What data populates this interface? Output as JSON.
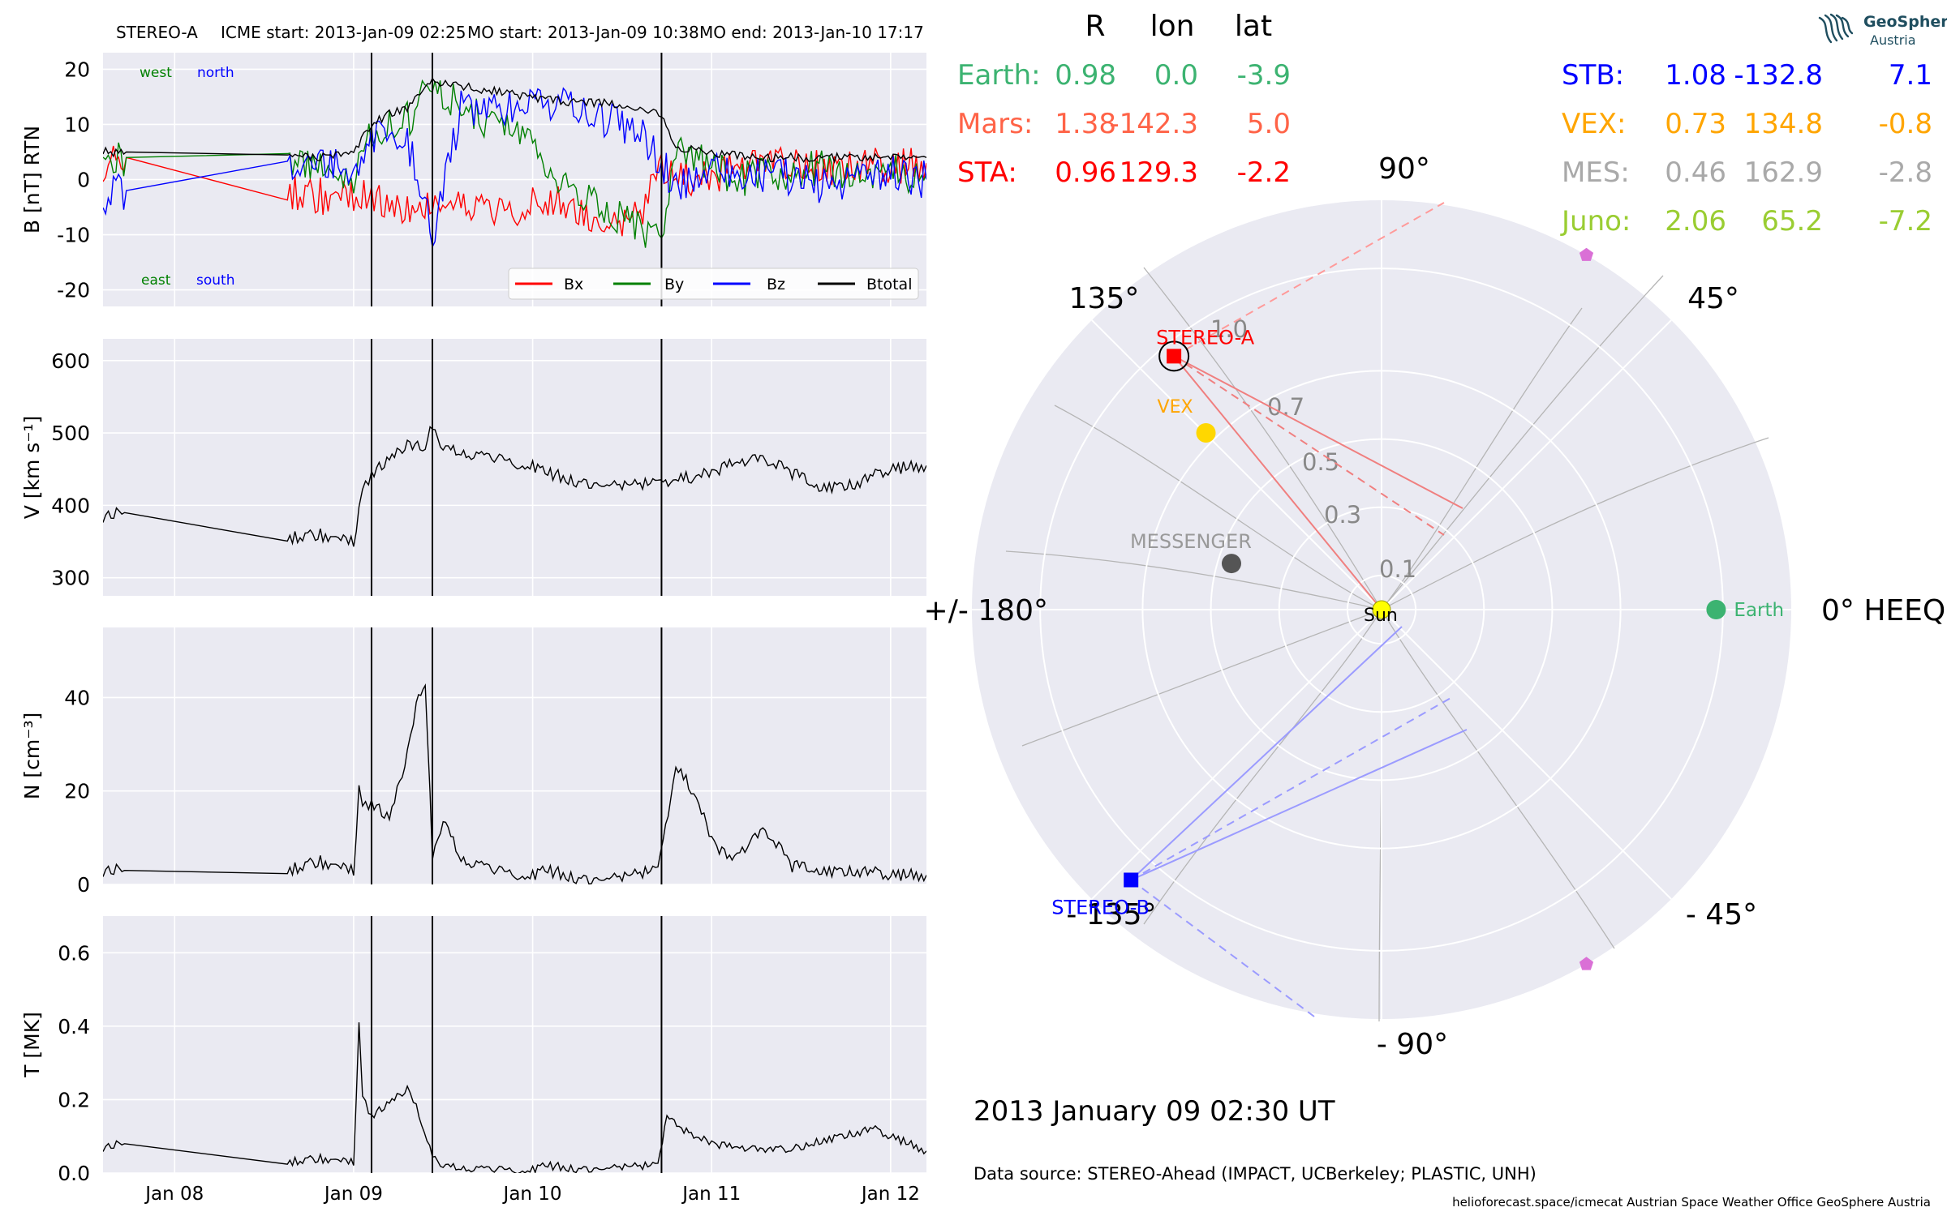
{
  "header": {
    "spacecraft": "STEREO-A",
    "icme_start": "ICME start: 2013-Jan-09 02:25",
    "mo_start": "MO start: 2013-Jan-09 10:38",
    "mo_end": "MO end: 2013-Jan-10 17:17"
  },
  "logo": {
    "line1": "GeoSphere",
    "line2": "Austria"
  },
  "timestamp": "2013 January 09  02:30 UT",
  "data_source": "Data source: STEREO-Ahead (IMPACT, UCBerkeley; PLASTIC, UNH)",
  "footer": "helioforecast.space/icmecat   Austrian Space Weather Office   GeoSphere Austria",
  "table": {
    "headers": [
      "R",
      "lon",
      "lat"
    ],
    "left_rows": [
      {
        "name": "Earth:",
        "r": "0.98",
        "lon": "0.0",
        "lat": "-3.9",
        "color": "#3cb371"
      },
      {
        "name": "Mars:",
        "r": "1.38",
        "lon": "-142.3",
        "lat": "5.0",
        "color": "#ff6347"
      },
      {
        "name": "STA:",
        "r": "0.96",
        "lon": "129.3",
        "lat": "-2.2",
        "color": "#ff0000"
      }
    ],
    "right_rows": [
      {
        "name": "STB:",
        "r": "1.08",
        "lon": "-132.8",
        "lat": "7.1",
        "color": "#0000ff"
      },
      {
        "name": "VEX:",
        "r": "0.73",
        "lon": "134.8",
        "lat": "-0.8",
        "color": "#ffa500"
      },
      {
        "name": "MES:",
        "r": "0.46",
        "lon": "162.9",
        "lat": "-2.8",
        "color": "#a9a9a9"
      },
      {
        "name": "Juno:",
        "r": "2.06",
        "lon": "65.2",
        "lat": "-7.2",
        "color": "#9acd32"
      }
    ]
  },
  "chart_data": [
    {
      "type": "line",
      "panel": "magnetic-field",
      "ylabel": "B [nT] RTN",
      "ylim": [
        -23,
        23
      ],
      "yticks": [
        20,
        10,
        0,
        -10,
        -20
      ],
      "xlim": [
        7.6,
        12.2
      ],
      "x_unit": "days (January 2013)",
      "annotations": [
        {
          "text": "west",
          "color": "#008000"
        },
        {
          "text": "north",
          "color": "#0000ff"
        },
        {
          "text": "east",
          "color": "#008000"
        },
        {
          "text": "south",
          "color": "#0000ff"
        }
      ],
      "legend": "bottom-right",
      "series": [
        {
          "name": "Bx",
          "color": "#ff0000",
          "x": [
            7.6,
            7.73,
            8.63,
            8.8,
            9.0,
            9.1,
            9.2,
            9.3,
            9.44,
            9.6,
            9.8,
            10.0,
            10.2,
            10.4,
            10.6,
            10.72,
            10.8,
            11.0,
            11.2,
            11.4,
            11.6,
            11.8,
            12.0,
            12.2
          ],
          "y": [
            3,
            4,
            -2,
            -3,
            -3,
            -4,
            -3,
            -5,
            -4,
            -5,
            -6,
            -4,
            -5,
            -8,
            -6,
            2,
            0,
            1,
            2,
            3,
            2,
            3,
            2,
            3
          ]
        },
        {
          "name": "By",
          "color": "#008000",
          "x": [
            7.6,
            7.73,
            8.63,
            8.8,
            9.0,
            9.1,
            9.2,
            9.3,
            9.44,
            9.6,
            9.8,
            10.0,
            10.2,
            10.4,
            10.6,
            10.72,
            10.8,
            11.0,
            11.2,
            11.4,
            11.6,
            11.8,
            12.0,
            12.2
          ],
          "y": [
            5,
            4,
            3,
            2,
            1,
            8,
            10,
            11,
            17,
            13,
            10,
            6,
            -2,
            -5,
            -9,
            -12,
            5,
            2,
            0,
            1,
            2,
            0,
            1,
            1
          ]
        },
        {
          "name": "Bz",
          "color": "#0000ff",
          "x": [
            7.6,
            7.73,
            8.63,
            8.8,
            9.0,
            9.1,
            9.2,
            9.3,
            9.44,
            9.6,
            9.8,
            10.0,
            10.2,
            10.4,
            10.6,
            10.72,
            10.8,
            11.0,
            11.2,
            11.4,
            11.6,
            11.8,
            12.0,
            12.2
          ],
          "y": [
            -3,
            -2,
            2,
            3,
            2,
            8,
            9,
            7,
            -10,
            13,
            12,
            14,
            13,
            11,
            9,
            3,
            -1,
            2,
            0,
            1,
            -1,
            0,
            1,
            0
          ]
        },
        {
          "name": "Btotal",
          "color": "#000000",
          "x": [
            7.6,
            7.73,
            8.63,
            8.8,
            9.0,
            9.1,
            9.2,
            9.3,
            9.44,
            9.6,
            9.8,
            10.0,
            10.2,
            10.4,
            10.6,
            10.72,
            10.8,
            11.0,
            11.2,
            11.4,
            11.6,
            11.8,
            12.0,
            12.2
          ],
          "y": [
            5,
            5,
            4,
            4,
            5,
            10,
            12,
            13,
            18,
            17,
            16,
            15,
            14,
            14,
            13,
            12,
            6,
            5,
            4,
            4,
            4,
            4,
            4,
            4
          ]
        }
      ]
    },
    {
      "type": "line",
      "panel": "speed",
      "ylabel": "V [km s⁻¹]",
      "ylim": [
        275,
        630
      ],
      "yticks": [
        600,
        500,
        400,
        300
      ],
      "series": [
        {
          "name": "",
          "color": "#000000",
          "x": [
            7.6,
            7.72,
            8.63,
            8.8,
            9.0,
            9.03,
            9.05,
            9.1,
            9.2,
            9.3,
            9.4,
            9.44,
            9.5,
            9.6,
            9.8,
            10.0,
            10.07,
            10.3,
            10.5,
            10.7,
            10.9,
            11.1,
            11.3,
            11.45,
            11.6,
            11.8,
            12.0,
            12.2
          ],
          "y": [
            385,
            390,
            355,
            360,
            350,
            390,
            430,
            440,
            470,
            485,
            480,
            510,
            480,
            470,
            465,
            455,
            445,
            430,
            430,
            430,
            440,
            455,
            465,
            445,
            425,
            430,
            450,
            455
          ]
        }
      ]
    },
    {
      "type": "line",
      "panel": "density",
      "ylabel": "N [cm⁻³]",
      "ylim": [
        0,
        55
      ],
      "yticks": [
        40,
        20,
        0
      ],
      "series": [
        {
          "name": "",
          "color": "#000000",
          "x": [
            7.6,
            7.72,
            8.63,
            8.8,
            9.0,
            9.03,
            9.05,
            9.1,
            9.2,
            9.3,
            9.35,
            9.4,
            9.44,
            9.5,
            9.6,
            9.8,
            10.0,
            10.07,
            10.3,
            10.5,
            10.7,
            10.8,
            10.9,
            11.0,
            11.1,
            11.2,
            11.3,
            11.45,
            11.6,
            11.8,
            12.0,
            12.2
          ],
          "y": [
            3,
            3,
            3,
            5,
            3,
            20,
            18,
            17,
            15,
            28,
            38,
            43,
            6,
            14,
            5,
            3,
            2,
            3,
            1,
            2,
            3,
            25,
            20,
            10,
            5,
            8,
            12,
            4,
            3,
            3,
            2,
            2
          ]
        }
      ]
    },
    {
      "type": "line",
      "panel": "temperature",
      "ylabel": "T [MK]",
      "ylim": [
        0,
        0.7
      ],
      "yticks": [
        0.6,
        0.4,
        0.2,
        0.0
      ],
      "xticks": [
        "Jan 08",
        "Jan 09",
        "Jan 10",
        "Jan 11",
        "Jan 12"
      ],
      "series": [
        {
          "name": "",
          "color": "#000000",
          "x": [
            7.6,
            7.72,
            8.63,
            8.8,
            9.0,
            9.03,
            9.05,
            9.1,
            9.2,
            9.3,
            9.35,
            9.44,
            9.5,
            9.6,
            9.8,
            10.0,
            10.07,
            10.3,
            10.5,
            10.7,
            10.75,
            10.9,
            11.1,
            11.3,
            11.5,
            11.7,
            11.9,
            12.0,
            12.2
          ],
          "y": [
            0.07,
            0.08,
            0.03,
            0.04,
            0.03,
            0.4,
            0.22,
            0.15,
            0.2,
            0.23,
            0.18,
            0.05,
            0.02,
            0.01,
            0.01,
            0.01,
            0.02,
            0.01,
            0.02,
            0.02,
            0.15,
            0.1,
            0.07,
            0.06,
            0.07,
            0.1,
            0.12,
            0.1,
            0.06
          ]
        }
      ]
    },
    {
      "type": "scatter",
      "panel": "heliospheric-positions",
      "coordinate_system": "HEEQ",
      "radial_ticks": [
        "0.1",
        "0.3",
        "0.5",
        "0.7",
        "1.0"
      ],
      "angle_labels": [
        "90°",
        "45°",
        "0° HEEQ",
        "- 45°",
        "- 90°",
        "- 135°",
        "+/- 180°",
        "135°"
      ],
      "bodies": [
        {
          "label": "Earth",
          "r": 0.98,
          "lon": 0.0,
          "color": "#3cb371",
          "marker": "circle"
        },
        {
          "label": "STEREO-A",
          "r": 0.96,
          "lon": 129.3,
          "color": "#ff0000",
          "marker": "square"
        },
        {
          "label": "STEREO-B",
          "r": 1.08,
          "lon": -132.8,
          "color": "#0000ff",
          "marker": "square"
        },
        {
          "label": "VEX",
          "r": 0.73,
          "lon": 134.8,
          "color": "#ffd700",
          "marker": "circle"
        },
        {
          "label": "MESSENGER",
          "r": 0.46,
          "lon": 162.9,
          "color": "#555555",
          "marker": "circle"
        },
        {
          "label": "Sun",
          "r": 0.0,
          "lon": 0.0,
          "color": "#ffff00",
          "marker": "circle"
        },
        {
          "label": "",
          "r": 1.2,
          "lon": 60,
          "color": "#da70d6",
          "marker": "pentagon"
        },
        {
          "label": "",
          "r": 1.2,
          "lon": -60,
          "color": "#da70d6",
          "marker": "pentagon"
        }
      ]
    }
  ]
}
